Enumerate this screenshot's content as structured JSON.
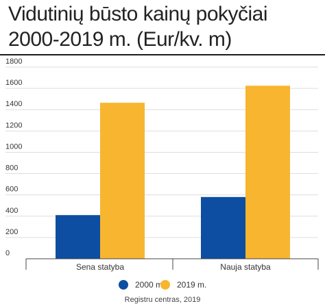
{
  "title_line1": "Vidutinių būsto kainų pokyčiai",
  "title_line2": "2000-2019 m. (Eur/kv. m)",
  "source": "Registru centras, 2019",
  "colors": {
    "series_2000": "#0d4ea3",
    "series_2019": "#f8b52f",
    "grid": "#dddddd",
    "axis": "#444444",
    "text": "#333333"
  },
  "chart_data": {
    "type": "bar",
    "title": "Vidutinių būsto kainų pokyčiai 2000-2019 m. (Eur/kv. m)",
    "categories": [
      "Sena statyba",
      "Nauja statyba"
    ],
    "series": [
      {
        "name": "2000 m.",
        "values": [
          410,
          580
        ]
      },
      {
        "name": "2019 m.",
        "values": [
          1465,
          1625
        ]
      }
    ],
    "ylim": [
      0,
      1800
    ],
    "yticks": [
      0,
      200,
      400,
      600,
      800,
      1000,
      1200,
      1400,
      1600,
      1800
    ],
    "grid": true,
    "legend_position": "bottom",
    "xlabel": "",
    "ylabel": ""
  }
}
